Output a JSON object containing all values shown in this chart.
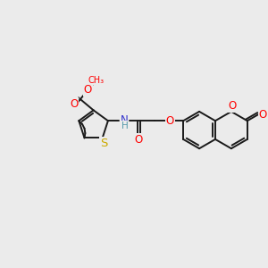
{
  "bg_color": "#ebebeb",
  "line_color": "#1a1a1a",
  "bond_lw": 1.4,
  "atom_colors": {
    "O": "#ff0000",
    "N": "#3333cc",
    "S": "#ccaa00",
    "H_N": "#5599aa"
  },
  "font_size": 8.0,
  "fig_size": [
    3.0,
    3.0
  ],
  "dpi": 100
}
